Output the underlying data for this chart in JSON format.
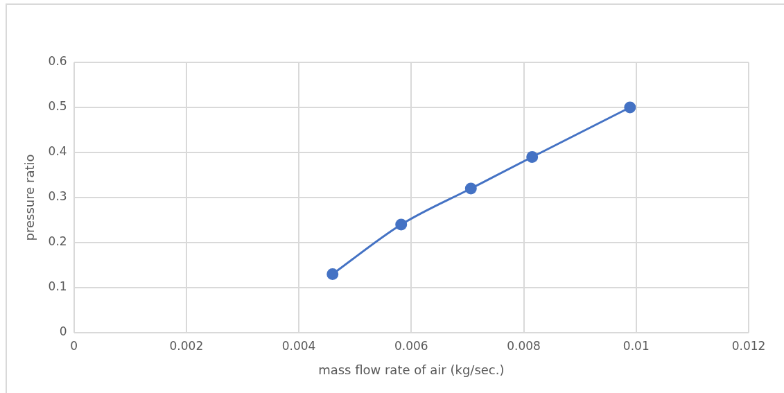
{
  "chart_data": {
    "type": "line",
    "xlabel": "mass flow rate of air (kg/sec.)",
    "ylabel": "pressure ratio",
    "x": [
      0.0046,
      0.00582,
      0.00706,
      0.00815,
      0.00989
    ],
    "series": [
      {
        "color": "#4472c4",
        "values": [
          0.13,
          0.24,
          0.32,
          0.39,
          0.5
        ]
      }
    ],
    "xlim": [
      0,
      0.012
    ],
    "xticks": [
      0,
      0.002,
      0.004,
      0.006,
      0.008,
      0.01,
      0.012
    ],
    "ylim": [
      0,
      0.6
    ],
    "yticks": [
      0,
      0.1,
      0.2,
      0.3,
      0.4,
      0.5,
      0.6
    ],
    "grid": true,
    "legend": false,
    "marker": "circle",
    "line_style": "solid"
  }
}
